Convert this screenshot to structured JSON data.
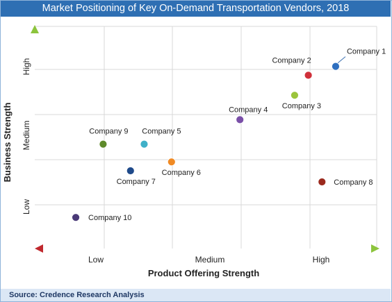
{
  "chart_data": {
    "type": "scatter",
    "title": "Market Positioning of Key On-Demand Transportation Vendors, 2018",
    "xlabel": "Product Offering Strength",
    "ylabel": "Business Strength",
    "x_tick_labels": [
      "Low",
      "Medium",
      "High"
    ],
    "y_tick_labels": [
      "Low",
      "Medium",
      "High"
    ],
    "xlim": [
      0,
      10
    ],
    "ylim": [
      0,
      10
    ],
    "grid": true,
    "points": [
      {
        "name": "Company 1",
        "x": 8.8,
        "y": 8.2,
        "color": "#2e6fc0"
      },
      {
        "name": "Company 2",
        "x": 8.0,
        "y": 7.8,
        "color": "#d0303a"
      },
      {
        "name": "Company 3",
        "x": 7.6,
        "y": 6.9,
        "color": "#9bc43c"
      },
      {
        "name": "Company 4",
        "x": 6.0,
        "y": 5.8,
        "color": "#7a4fa8"
      },
      {
        "name": "Company 5",
        "x": 3.2,
        "y": 4.7,
        "color": "#3fb0c8"
      },
      {
        "name": "Company 6",
        "x": 4.0,
        "y": 3.9,
        "color": "#f08a24"
      },
      {
        "name": "Company 7",
        "x": 2.8,
        "y": 3.5,
        "color": "#1f4a8a"
      },
      {
        "name": "Company 8",
        "x": 8.4,
        "y": 3.0,
        "color": "#9b2a1e"
      },
      {
        "name": "Company 9",
        "x": 2.0,
        "y": 4.7,
        "color": "#5e8a2a"
      },
      {
        "name": "Company 10",
        "x": 1.2,
        "y": 1.4,
        "color": "#4a3a78"
      }
    ]
  },
  "source": "Source: Credence Research Analysis"
}
